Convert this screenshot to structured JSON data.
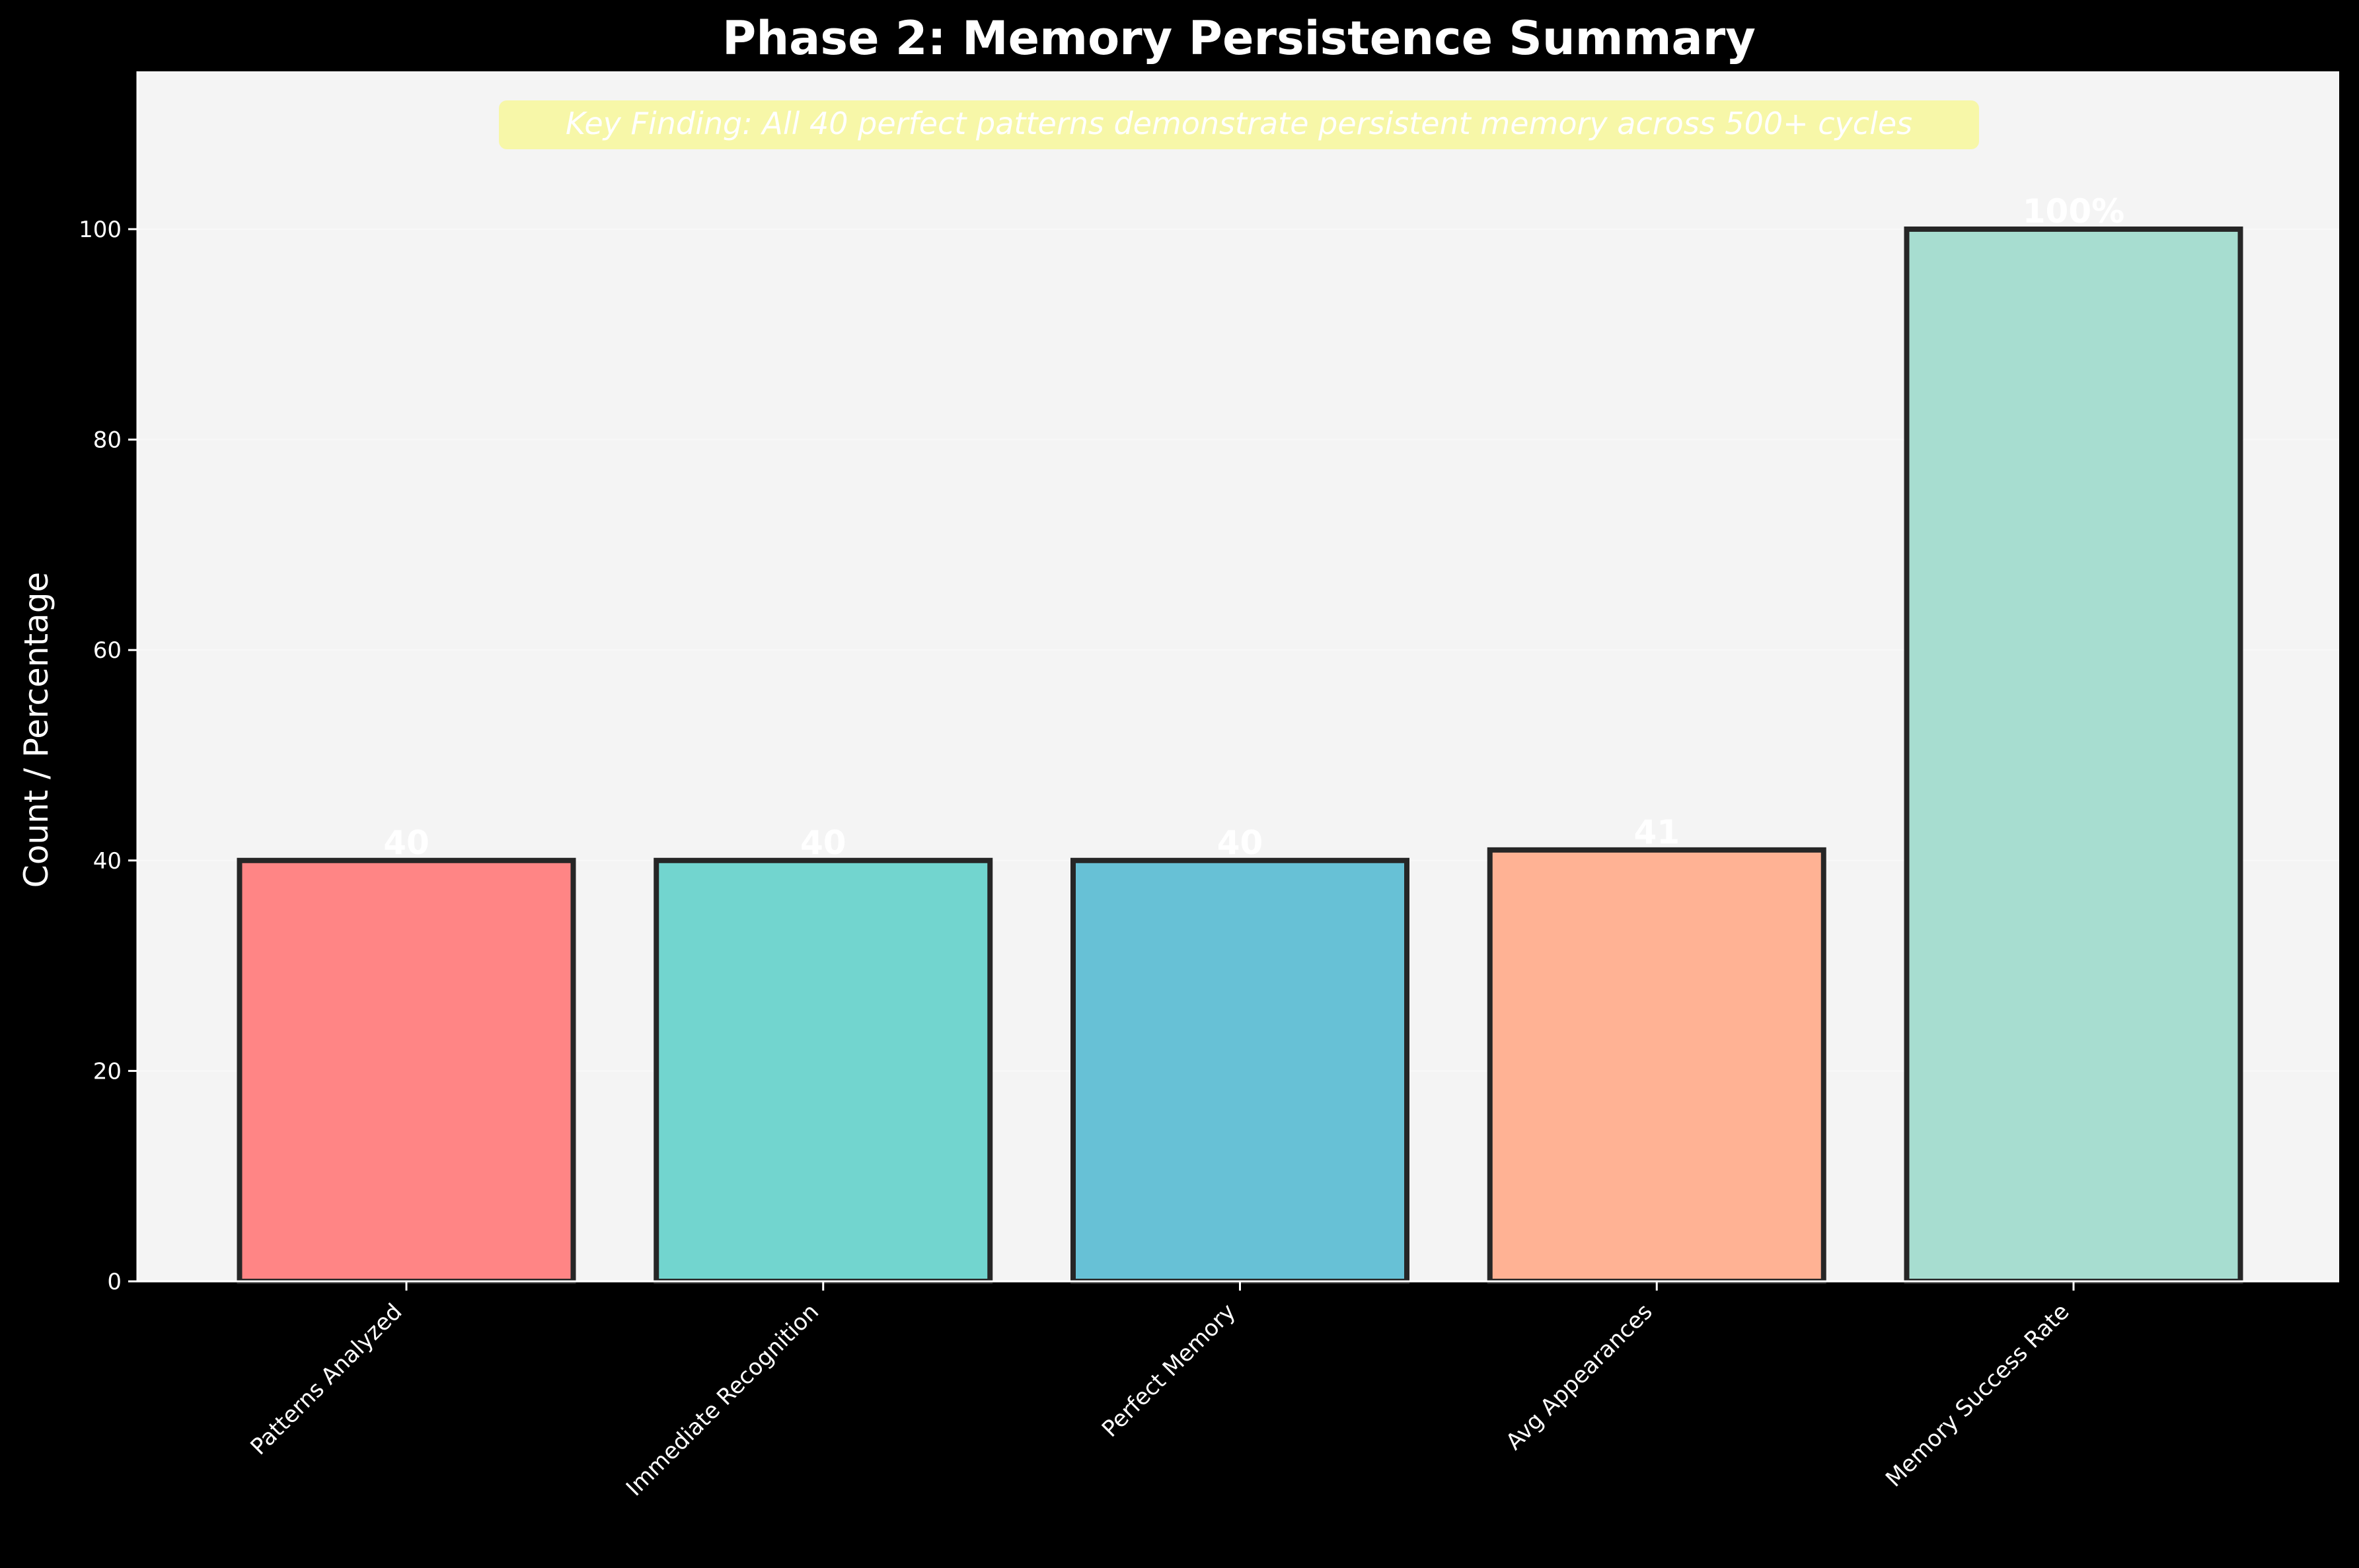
{
  "chart_data": {
    "type": "bar",
    "title": "Phase 2: Memory Persistence Summary",
    "xlabel": "",
    "ylabel": "Count / Percentage",
    "ylim": [
      0,
      115
    ],
    "yticks": [
      0,
      20,
      40,
      60,
      80,
      100
    ],
    "grid": true,
    "categories": [
      "Patterns Analyzed",
      "Immediate Recognition",
      "Perfect Memory",
      "Avg Appearances",
      "Memory Success Rate"
    ],
    "values": [
      40,
      40,
      40,
      41,
      100
    ],
    "value_labels": [
      "40",
      "40",
      "40",
      "41",
      "100%"
    ],
    "colors": [
      "#ff8585",
      "#72d5cf",
      "#67c1d6",
      "#ffb294",
      "#a7ddd0"
    ],
    "annotation": "Key Finding: All 40 perfect patterns demonstrate persistent memory across 500+ cycles",
    "annotation_color": "#f7f7a8",
    "plot_background": "#f4f4f4",
    "figure_background": "#000000"
  }
}
